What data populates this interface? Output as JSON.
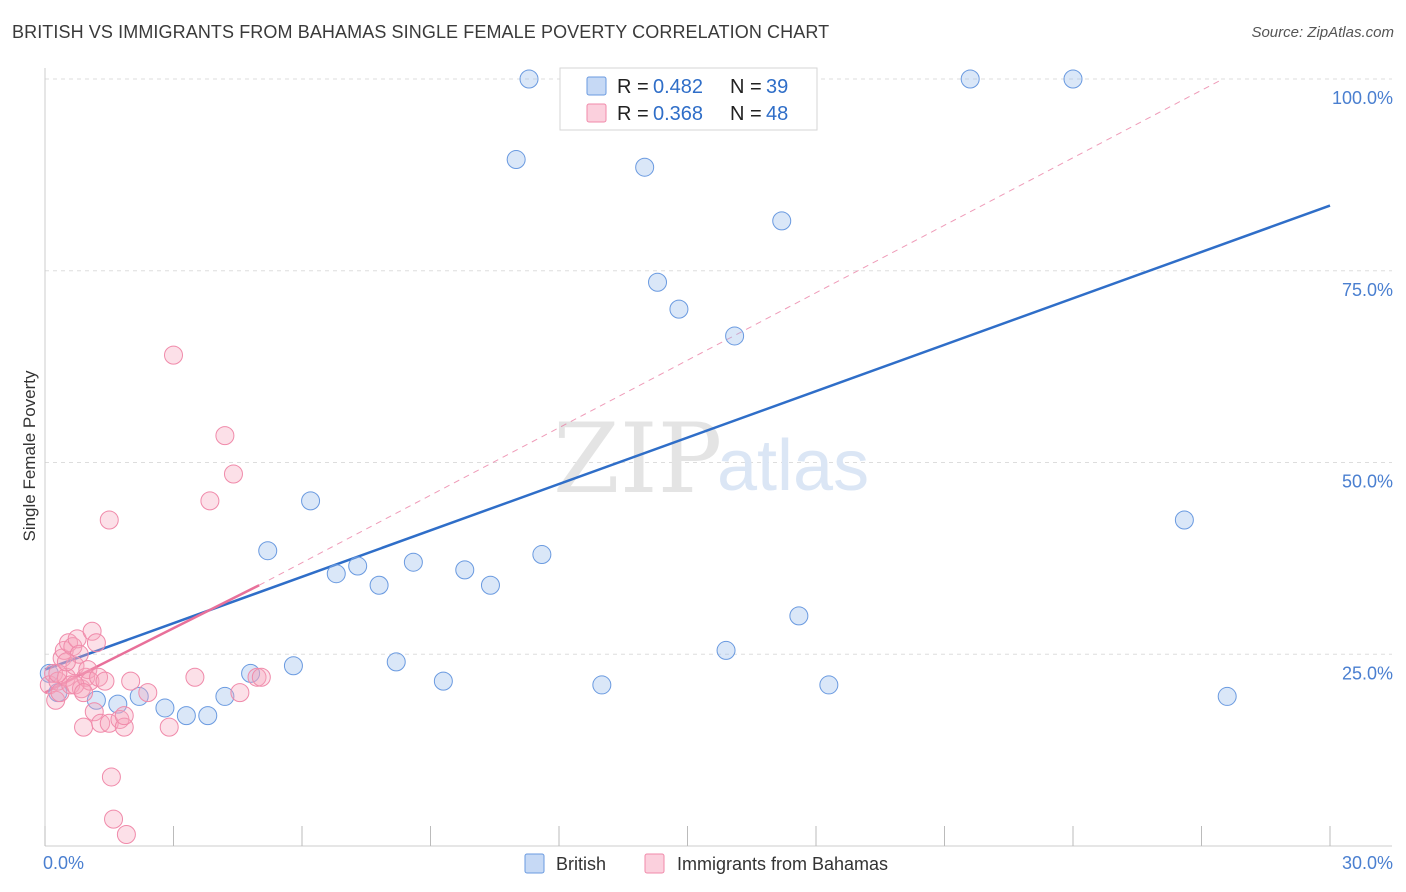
{
  "header": {
    "title": "BRITISH VS IMMIGRANTS FROM BAHAMAS SINGLE FEMALE POVERTY CORRELATION CHART",
    "source": "Source: ZipAtlas.com"
  },
  "watermark": {
    "zip": "ZIP",
    "atlas": "atlas"
  },
  "colors": {
    "british": "#6a9ae0",
    "british_line": "#2f6ec8",
    "bahamas": "#f08aaa",
    "bahamas_line": "#e8709a",
    "axis_text": "#4a7fd0",
    "grid": "#dddddd"
  },
  "stats": [
    {
      "r_label": "R =",
      "r_value": "0.482",
      "n_label": "N =",
      "n_value": "39",
      "series": "british"
    },
    {
      "r_label": "R =",
      "r_value": "0.368",
      "n_label": "N =",
      "n_value": "48",
      "series": "bahamas"
    }
  ],
  "legend": {
    "british": "British",
    "bahamas": "Immigrants from Bahamas"
  },
  "chart_data": {
    "type": "scatter",
    "title": "BRITISH VS IMMIGRANTS FROM BAHAMAS SINGLE FEMALE POVERTY CORRELATION CHART",
    "xlabel": "",
    "ylabel": "Single Female Poverty",
    "xlim": [
      0,
      30
    ],
    "ylim": [
      0,
      100
    ],
    "x_tick_labels": [
      "0.0%",
      "30.0%"
    ],
    "y_tick_labels": [
      "25.0%",
      "50.0%",
      "75.0%",
      "100.0%"
    ],
    "y_ticks": [
      25,
      50,
      75,
      100
    ],
    "grid": true,
    "legend_position": "bottom",
    "series": [
      {
        "name": "British",
        "points": [
          [
            0.1,
            22.5
          ],
          [
            0.3,
            20.0
          ],
          [
            1.2,
            19.0
          ],
          [
            1.7,
            18.5
          ],
          [
            2.2,
            19.5
          ],
          [
            2.8,
            18.0
          ],
          [
            3.3,
            17.0
          ],
          [
            3.8,
            17.0
          ],
          [
            4.2,
            19.5
          ],
          [
            4.8,
            22.5
          ],
          [
            5.2,
            38.5
          ],
          [
            5.8,
            23.5
          ],
          [
            6.2,
            45.0
          ],
          [
            6.8,
            35.5
          ],
          [
            7.3,
            36.5
          ],
          [
            7.8,
            34.0
          ],
          [
            8.2,
            24.0
          ],
          [
            8.6,
            37.0
          ],
          [
            9.3,
            21.5
          ],
          [
            9.8,
            36.0
          ],
          [
            10.4,
            34.0
          ],
          [
            11.6,
            38.0
          ],
          [
            11.0,
            89.5
          ],
          [
            11.3,
            100.0
          ],
          [
            12.6,
            100.0
          ],
          [
            12.9,
            100.0
          ],
          [
            13.0,
            21.0
          ],
          [
            14.0,
            88.5
          ],
          [
            14.3,
            73.5
          ],
          [
            14.8,
            70.0
          ],
          [
            16.1,
            66.5
          ],
          [
            15.9,
            25.5
          ],
          [
            17.2,
            81.5
          ],
          [
            17.6,
            30.0
          ],
          [
            18.3,
            21.0
          ],
          [
            21.6,
            100.0
          ],
          [
            24.0,
            100.0
          ],
          [
            26.6,
            42.5
          ],
          [
            27.6,
            19.5
          ]
        ]
      },
      {
        "name": "Immigrants from Bahamas",
        "points": [
          [
            0.1,
            21.0
          ],
          [
            0.2,
            22.5
          ],
          [
            0.25,
            19.0
          ],
          [
            0.3,
            21.5
          ],
          [
            0.35,
            20.0
          ],
          [
            0.4,
            24.5
          ],
          [
            0.45,
            25.5
          ],
          [
            0.5,
            22.0
          ],
          [
            0.55,
            26.5
          ],
          [
            0.6,
            21.0
          ],
          [
            0.65,
            26.0
          ],
          [
            0.7,
            23.5
          ],
          [
            0.75,
            27.0
          ],
          [
            0.8,
            25.0
          ],
          [
            0.85,
            20.5
          ],
          [
            0.9,
            15.5
          ],
          [
            0.95,
            22.0
          ],
          [
            1.0,
            23.0
          ],
          [
            1.05,
            21.5
          ],
          [
            1.1,
            28.0
          ],
          [
            1.15,
            17.5
          ],
          [
            1.2,
            26.5
          ],
          [
            1.25,
            22.0
          ],
          [
            1.3,
            16.0
          ],
          [
            1.4,
            21.5
          ],
          [
            1.5,
            16.0
          ],
          [
            1.55,
            9.0
          ],
          [
            1.6,
            3.5
          ],
          [
            1.5,
            42.5
          ],
          [
            1.75,
            16.5
          ],
          [
            1.85,
            15.5
          ],
          [
            1.85,
            17.0
          ],
          [
            1.9,
            1.5
          ],
          [
            2.0,
            21.5
          ],
          [
            2.4,
            20.0
          ],
          [
            2.9,
            15.5
          ],
          [
            3.0,
            64.0
          ],
          [
            3.5,
            22.0
          ],
          [
            3.85,
            45.0
          ],
          [
            4.2,
            53.5
          ],
          [
            4.4,
            48.5
          ],
          [
            4.55,
            20.0
          ],
          [
            4.95,
            22.0
          ],
          [
            5.05,
            22.0
          ],
          [
            0.3,
            22.5
          ],
          [
            0.5,
            24.0
          ],
          [
            0.7,
            21.0
          ],
          [
            0.9,
            20.0
          ]
        ]
      }
    ],
    "trend_lines": [
      {
        "series": "British",
        "x": [
          0,
          30
        ],
        "y": [
          23.0,
          83.5
        ],
        "style": "solid"
      },
      {
        "series": "Immigrants from Bahamas",
        "x": [
          0,
          5.0
        ],
        "y": [
          20.0,
          34.0
        ],
        "style": "solid"
      },
      {
        "series": "Immigrants from Bahamas",
        "x": [
          5.0,
          27.5
        ],
        "y": [
          34.0,
          100.0
        ],
        "style": "dashed"
      }
    ]
  }
}
